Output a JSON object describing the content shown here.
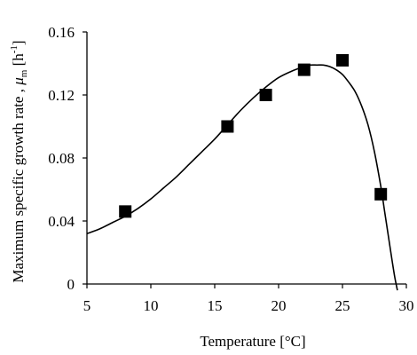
{
  "chart_data": {
    "type": "scatter",
    "xlabel": "Temperature [°C]",
    "ylabel_parts": {
      "main": "Maximum specific growth rate , ",
      "symbol": "μ",
      "subscript": "m",
      "unit": " [h",
      "unit_exp": "-1",
      "unit_close": "]"
    },
    "xlim": [
      5,
      30
    ],
    "ylim": [
      0,
      0.16
    ],
    "x_ticks": [
      5,
      10,
      15,
      20,
      25,
      30
    ],
    "y_ticks": [
      0,
      0.04,
      0.08,
      0.12,
      0.16
    ],
    "x_tick_labels": [
      "5",
      "10",
      "15",
      "20",
      "25",
      "30"
    ],
    "y_tick_labels": [
      "0",
      "0.04",
      "0.08",
      "0.12",
      "0.16"
    ],
    "grid": false,
    "series": [
      {
        "kind": "points",
        "marker": "square",
        "x": [
          8,
          16,
          19,
          22,
          25,
          28
        ],
        "y": [
          0.046,
          0.1,
          0.12,
          0.136,
          0.142,
          0.057
        ]
      },
      {
        "kind": "curve",
        "x": [
          5.0,
          6.0,
          7.0,
          8.0,
          9.0,
          10.0,
          11.0,
          12.0,
          13.0,
          14.0,
          15.0,
          16.0,
          17.0,
          18.0,
          19.0,
          20.0,
          21.0,
          22.0,
          22.5,
          23.0,
          23.5,
          24.0,
          24.5,
          25.0,
          25.5,
          26.0,
          26.5,
          27.0,
          27.5,
          28.0,
          28.3,
          28.6,
          28.9,
          29.1,
          29.3
        ],
        "y": [
          0.032,
          0.035,
          0.039,
          0.043,
          0.048,
          0.054,
          0.061,
          0.068,
          0.076,
          0.084,
          0.092,
          0.101,
          0.11,
          0.118,
          0.125,
          0.131,
          0.135,
          0.138,
          0.139,
          0.139,
          0.139,
          0.138,
          0.136,
          0.133,
          0.128,
          0.122,
          0.113,
          0.101,
          0.084,
          0.062,
          0.046,
          0.03,
          0.014,
          0.004,
          -0.004
        ]
      }
    ],
    "colors": {
      "axis": "#000000",
      "marker": "#000000",
      "curve": "#000000"
    }
  }
}
